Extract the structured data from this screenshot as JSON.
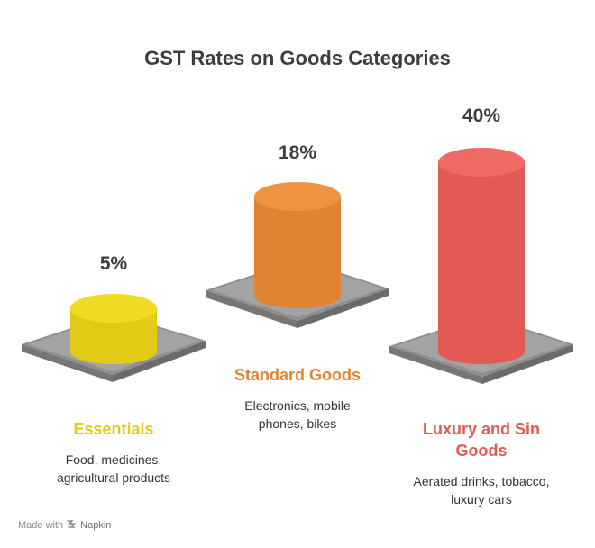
{
  "title": "GST Rates on Goods Categories",
  "colors": {
    "essentials": "#e2cb16",
    "standard": "#e08431",
    "luxury": "#e35a55",
    "platform": "#9a9a9a"
  },
  "items": [
    {
      "rate": "5%",
      "category": "Essentials",
      "description_lines": [
        "Food, medicines,",
        "agricultural products"
      ],
      "value": 5
    },
    {
      "rate": "18%",
      "category": "Standard Goods",
      "description_lines": [
        "Electronics, mobile",
        "phones, bikes"
      ],
      "value": 18
    },
    {
      "rate": "40%",
      "category_lines": [
        "Luxury and Sin",
        "Goods"
      ],
      "description_lines": [
        "Aerated drinks, tobacco,",
        "luxury cars"
      ],
      "value": 40
    }
  ],
  "footer": {
    "made_with": "Made with",
    "brand": "Napkin"
  }
}
